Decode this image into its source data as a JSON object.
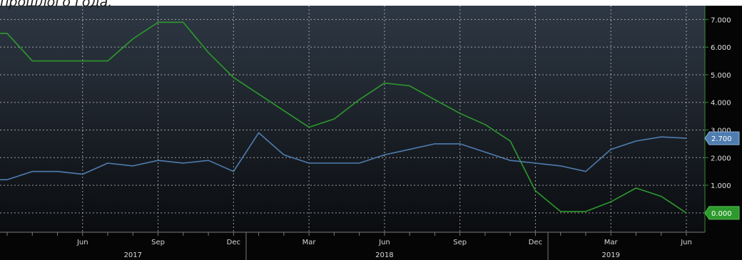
{
  "caption": "прошлого года.",
  "chart_data": {
    "type": "line",
    "title": "",
    "xlabel": "",
    "ylabel": "",
    "ylim": [
      -0.7,
      7.5
    ],
    "grid": true,
    "x_months": [
      "2017-03",
      "2017-04",
      "2017-05",
      "2017-06",
      "2017-07",
      "2017-08",
      "2017-09",
      "2017-10",
      "2017-11",
      "2017-12",
      "2018-01",
      "2018-02",
      "2018-03",
      "2018-04",
      "2018-05",
      "2018-06",
      "2018-07",
      "2018-08",
      "2018-09",
      "2018-10",
      "2018-11",
      "2018-12",
      "2019-01",
      "2019-02",
      "2019-03",
      "2019-04",
      "2019-05",
      "2019-06"
    ],
    "month_ticks": [
      {
        "month": "2017-06",
        "label": "Jun"
      },
      {
        "month": "2017-09",
        "label": "Sep"
      },
      {
        "month": "2017-12",
        "label": "Dec"
      },
      {
        "month": "2018-03",
        "label": "Mar"
      },
      {
        "month": "2018-06",
        "label": "Jun"
      },
      {
        "month": "2018-09",
        "label": "Sep"
      },
      {
        "month": "2018-12",
        "label": "Dec"
      },
      {
        "month": "2019-03",
        "label": "Mar"
      },
      {
        "month": "2019-06",
        "label": "Jun"
      }
    ],
    "year_labels": [
      {
        "month": "2017-08",
        "label": "2017"
      },
      {
        "month": "2018-06",
        "label": "2018"
      },
      {
        "month": "2019-03",
        "label": "2019"
      }
    ],
    "y_ticks": [
      {
        "value": 1,
        "label": "1.000"
      },
      {
        "value": 2,
        "label": "2.000"
      },
      {
        "value": 3,
        "label": "3.000"
      },
      {
        "value": 4,
        "label": "4.000"
      },
      {
        "value": 5,
        "label": "5.000"
      },
      {
        "value": 6,
        "label": "6.000"
      },
      {
        "value": 7,
        "label": "7.000"
      }
    ],
    "series": [
      {
        "color": "#2c9a2c",
        "values": [
          6.5,
          5.5,
          5.5,
          5.5,
          5.5,
          6.3,
          6.9,
          6.9,
          5.8,
          4.9,
          4.3,
          3.7,
          3.1,
          3.4,
          4.1,
          4.7,
          4.6,
          4.1,
          3.6,
          3.2,
          2.6,
          0.8,
          0.05,
          0.05,
          0.4,
          0.9,
          0.6,
          0.0
        ],
        "last_label": "0.000"
      },
      {
        "color": "#4f7db0",
        "values": [
          1.2,
          1.5,
          1.5,
          1.4,
          1.8,
          1.7,
          1.9,
          1.8,
          1.9,
          1.5,
          2.9,
          2.1,
          1.8,
          1.8,
          1.8,
          2.1,
          2.3,
          2.5,
          2.5,
          2.2,
          1.9,
          1.8,
          1.7,
          1.5,
          2.3,
          2.6,
          2.75,
          2.7
        ],
        "last_label": "2.700"
      }
    ]
  }
}
